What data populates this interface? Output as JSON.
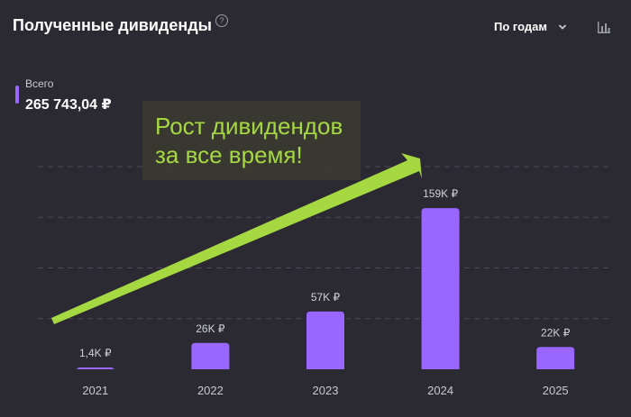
{
  "header": {
    "title": "Полученные дивиденды",
    "help_icon": "question-circle-icon",
    "period_label": "По годам",
    "period_icon": "chevron-down-icon",
    "chart_type_icon": "bar-chart-icon"
  },
  "summary": {
    "label": "Всего",
    "value": "265 743,04 ₽",
    "marker_color": "#9966ff"
  },
  "annotation": {
    "text": "Рост дивидендов\nза все время!",
    "color": "#a6d842"
  },
  "chart_data": {
    "type": "bar",
    "categories": [
      "2021",
      "2022",
      "2023",
      "2024",
      "2025"
    ],
    "values": [
      1.4,
      26,
      57,
      159,
      22
    ],
    "data_labels": [
      "1,4K ₽",
      "26K ₽",
      "57K ₽",
      "159K ₽",
      "22K ₽"
    ],
    "unit": "K ₽",
    "ylim": [
      0,
      200
    ],
    "grid": true,
    "bar_color": "#9966ff"
  }
}
